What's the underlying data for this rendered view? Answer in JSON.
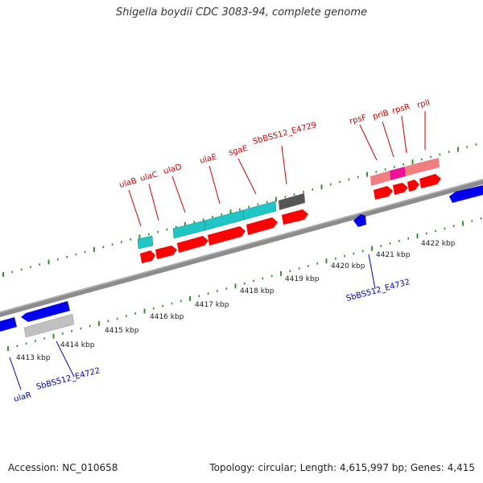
{
  "title": "Shigella boydii CDC 3083-94, complete genome",
  "footer": {
    "accession": "Accession: NC_010658",
    "topology": "Topology: circular; Length: 4,615,997 bp; Genes: 4,415"
  },
  "colors": {
    "background": "#ffffff",
    "backbone": "#8c8c8c",
    "tick": "#1a8a1a",
    "cds_forward": "#ff0000",
    "cds_reverse": "#0000ee",
    "gene_label_forward": "#cc0000",
    "gene_label_reverse": "#0000aa",
    "feature_teal": "#20c6c6",
    "feature_gray": "#555555",
    "feature_silver": "#c0c0c0",
    "feature_pink": "#f08080",
    "feature_magenta": "#ee1199"
  },
  "axis_labels": [
    {
      "text": "4413 kbp"
    },
    {
      "text": "4414 kbp"
    },
    {
      "text": "4415 kbp"
    },
    {
      "text": "4416 kbp"
    },
    {
      "text": "4417 kbp"
    },
    {
      "text": "4418 kbp"
    },
    {
      "text": "4419 kbp"
    },
    {
      "text": "4420 kbp"
    },
    {
      "text": "4421 kbp"
    },
    {
      "text": "4422 kbp"
    }
  ],
  "gene_labels_top": [
    {
      "text": "ulaB"
    },
    {
      "text": "ulaC"
    },
    {
      "text": "ulaD"
    },
    {
      "text": "ulaE"
    },
    {
      "text": "sgaE"
    },
    {
      "text": "SbBS512_E4729"
    },
    {
      "text": "rpsF"
    },
    {
      "text": "priB"
    },
    {
      "text": "rpsR"
    },
    {
      "text": "rplI"
    }
  ],
  "gene_labels_bottom": [
    {
      "text": "ulaR"
    },
    {
      "text": "SbBS512_E4722"
    },
    {
      "text": "SbBS512_E4732"
    }
  ]
}
